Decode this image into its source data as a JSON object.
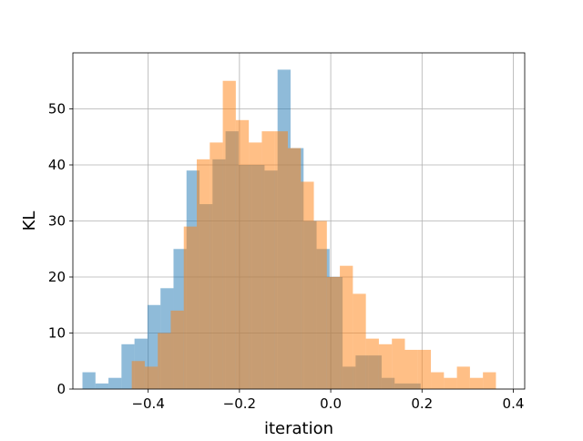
{
  "chart_data": {
    "type": "histogram",
    "title": "",
    "xlabel": "iteration",
    "ylabel": "KL",
    "xlim": [
      -0.565,
      0.425
    ],
    "ylim": [
      0,
      60
    ],
    "xticks": [
      -0.4,
      -0.2,
      0.0,
      0.2,
      0.4
    ],
    "xtick_labels": [
      "−0.4",
      "−0.2",
      "0.0",
      "0.2",
      "0.4"
    ],
    "yticks": [
      0,
      10,
      20,
      30,
      40,
      50
    ],
    "ytick_labels": [
      "0",
      "10",
      "20",
      "30",
      "40",
      "50"
    ],
    "grid": true,
    "legend": false,
    "series": [
      {
        "color": "#1f77b4",
        "alpha": 0.5,
        "bin_start": -0.544,
        "bin_width": 0.0285,
        "values": [
          3,
          1,
          2,
          8,
          9,
          15,
          18,
          25,
          39,
          33,
          41,
          46,
          40,
          40,
          39,
          57,
          43,
          30,
          25,
          20,
          4,
          6,
          6,
          2,
          1,
          1
        ]
      },
      {
        "color": "#ff7f0e",
        "alpha": 0.5,
        "bin_start": -0.436,
        "bin_width": 0.0285,
        "values": [
          5,
          4,
          10,
          14,
          29,
          41,
          44,
          55,
          48,
          44,
          46,
          46,
          43,
          37,
          30,
          20,
          22,
          17,
          9,
          8,
          9,
          7,
          7,
          3,
          2,
          4,
          2,
          3
        ]
      }
    ]
  }
}
